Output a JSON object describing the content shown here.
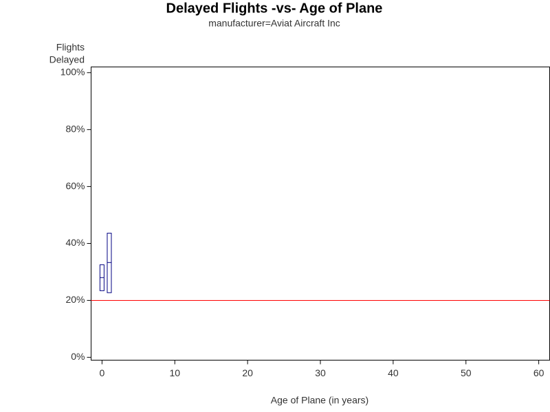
{
  "chart_data": {
    "type": "interval",
    "title": "Delayed Flights -vs- Age of Plane",
    "subtitle": "manufacturer=Aviat Aircraft Inc",
    "ylabel": [
      "Flights",
      "Delayed"
    ],
    "xlabel": "Age of Plane (in years)",
    "x": [
      0,
      1
    ],
    "low": [
      23.4,
      22.7
    ],
    "mid": [
      28.0,
      33.3
    ],
    "high": [
      32.5,
      43.6
    ],
    "color": "#000080",
    "reference_line": 20,
    "reference_color": "#ff0000",
    "xlim": [
      -1.5,
      61.5
    ],
    "xticks": [
      0,
      10,
      20,
      30,
      40,
      50,
      60
    ],
    "ylim": [
      -1,
      102
    ],
    "yticks": [
      {
        "value": 0,
        "label": "0%"
      },
      {
        "value": 20,
        "label": "20%"
      },
      {
        "value": 40,
        "label": "40%"
      },
      {
        "value": 60,
        "label": "60%"
      },
      {
        "value": 80,
        "label": "80%"
      },
      {
        "value": 100,
        "label": "100%"
      }
    ]
  }
}
